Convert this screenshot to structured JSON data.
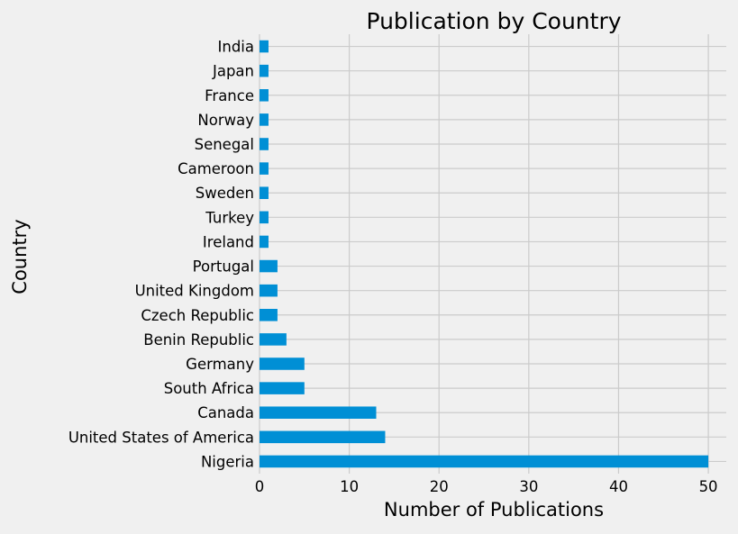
{
  "chart_data": {
    "type": "bar",
    "orientation": "horizontal",
    "title": "Publication by Country",
    "xlabel": "Number of Publications",
    "ylabel": "Country",
    "categories": [
      "Nigeria",
      "United States of America",
      "Canada",
      "South Africa",
      "Germany",
      "Benin Republic",
      "Czech Republic",
      "United Kingdom",
      "Portugal",
      "Ireland",
      "Turkey",
      "Sweden",
      "Cameroon",
      "Senegal",
      "Norway",
      "France",
      "Japan",
      "India"
    ],
    "values": [
      50,
      14,
      13,
      5,
      5,
      3,
      2,
      2,
      2,
      1,
      1,
      1,
      1,
      1,
      1,
      1,
      1,
      1
    ],
    "xlim": [
      0,
      52
    ],
    "xticks": [
      0,
      10,
      20,
      30,
      40,
      50
    ],
    "grid": true,
    "bar_color": "#008fd5",
    "background_color": "#f0f0f0",
    "grid_color": "#cbcbcb"
  }
}
